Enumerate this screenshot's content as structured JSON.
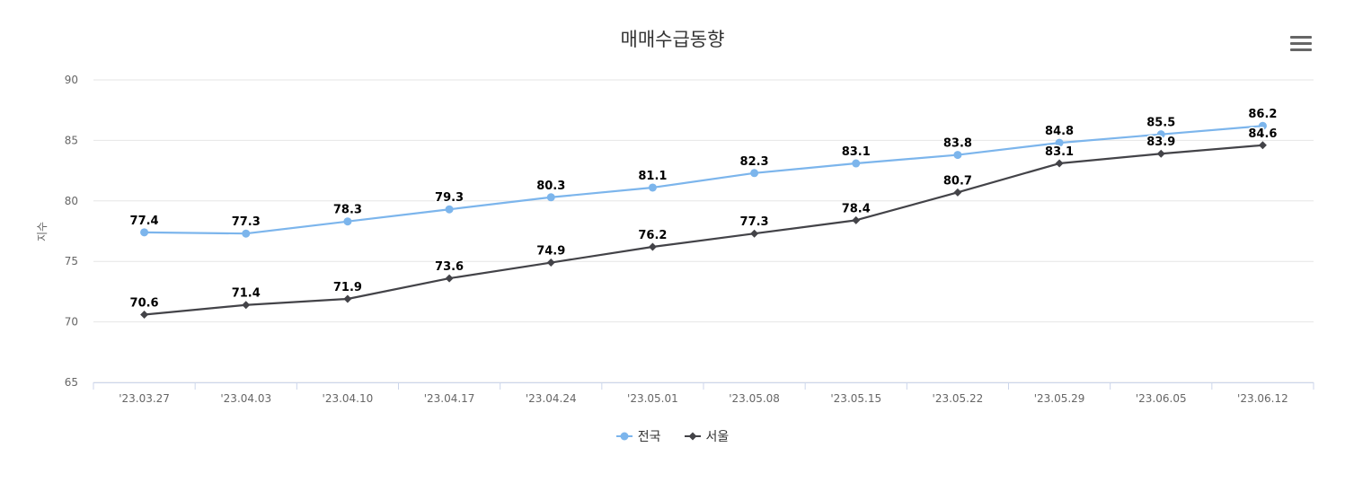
{
  "chart_data": {
    "type": "line",
    "title": "매매수급동향",
    "ylabel": "지수",
    "xlabel": "",
    "ylim": [
      65,
      90
    ],
    "yticks": [
      65,
      70,
      75,
      80,
      85,
      90
    ],
    "categories": [
      "'23.03.27",
      "'23.04.03",
      "'23.04.10",
      "'23.04.17",
      "'23.04.24",
      "'23.05.01",
      "'23.05.08",
      "'23.05.15",
      "'23.05.22",
      "'23.05.29",
      "'23.06.05",
      "'23.06.12"
    ],
    "series": [
      {
        "name": "전국",
        "color": "#7cb5ec",
        "marker": "circle",
        "values": [
          77.4,
          77.3,
          78.3,
          79.3,
          80.3,
          81.1,
          82.3,
          83.1,
          83.8,
          84.8,
          85.5,
          86.2
        ]
      },
      {
        "name": "서울",
        "color": "#434348",
        "marker": "diamond",
        "values": [
          70.6,
          71.4,
          71.9,
          73.6,
          74.9,
          76.2,
          77.3,
          78.4,
          80.7,
          83.1,
          83.9,
          84.6
        ]
      }
    ],
    "grid": true,
    "legend": "bottom-center"
  },
  "icons": {
    "menu": "hamburger-menu-icon"
  }
}
